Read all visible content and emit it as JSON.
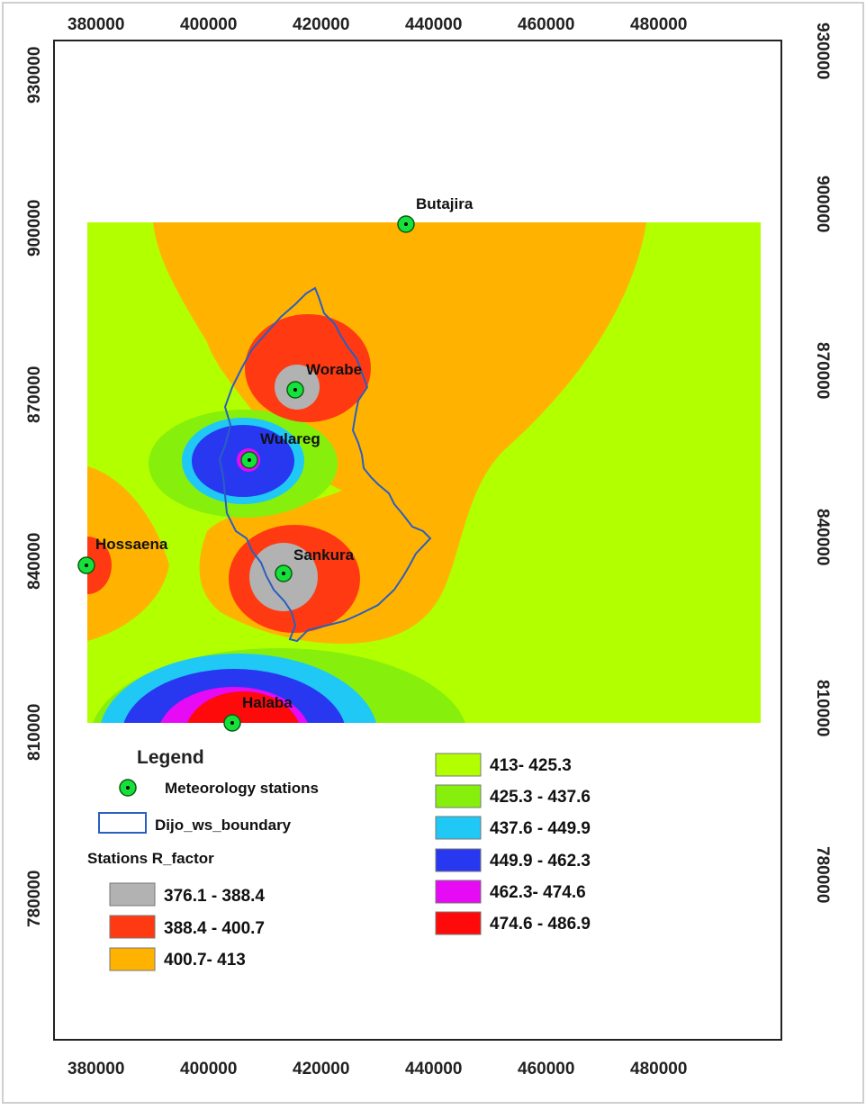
{
  "map": {
    "x_ticks": [
      "380000",
      "400000",
      "420000",
      "440000",
      "460000",
      "480000"
    ],
    "y_ticks": [
      "930000",
      "900000",
      "870000",
      "840000",
      "810000",
      "780000"
    ]
  },
  "stations": [
    {
      "name": "Butajira"
    },
    {
      "name": "Worabe"
    },
    {
      "name": "Wulareg"
    },
    {
      "name": "Hossaena"
    },
    {
      "name": "Sankura"
    },
    {
      "name": "Halaba"
    }
  ],
  "legend": {
    "title": "Legend",
    "stations_label": "Meteorology stations",
    "boundary_label": "Dijo_ws_boundary",
    "classes_title": "Stations R_factor",
    "classes": [
      {
        "label": "376.1 - 388.4",
        "color": "#B2B2B2"
      },
      {
        "label": "388.4 - 400.7",
        "color": "#FF3A12"
      },
      {
        "label": "400.7- 413",
        "color": "#FFB300"
      },
      {
        "label": "413- 425.3",
        "color": "#B2FF00"
      },
      {
        "label": "425.3 - 437.6",
        "color": "#86F00C"
      },
      {
        "label": "437.6 - 449.9",
        "color": "#20C8F5"
      },
      {
        "label": "449.9 - 462.3",
        "color": "#2838F0"
      },
      {
        "label": "462.3- 474.6",
        "color": "#E60AF5"
      },
      {
        "label": "474.6 - 486.9",
        "color": "#FF0A0A"
      }
    ]
  },
  "colors": {
    "station_marker": "#16E03A",
    "boundary": "#2A5FBF",
    "frame": "#222222"
  }
}
